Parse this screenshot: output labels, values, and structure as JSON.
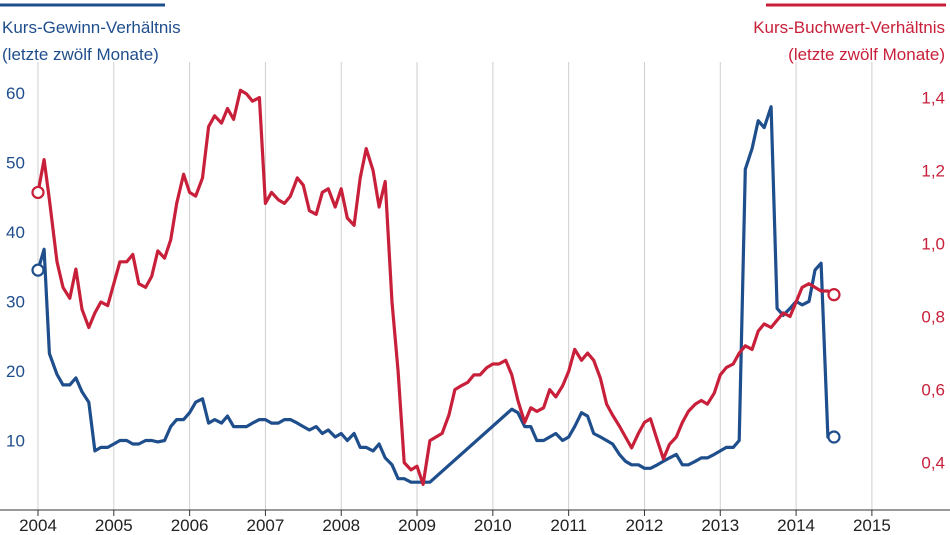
{
  "chart_data": {
    "type": "line",
    "left_axis": {
      "title_lines": [
        "Kurs-Gewinn-Verhältnis",
        "(letzte zwölf Monate)"
      ],
      "ticks": [
        "10",
        "20",
        "30",
        "40",
        "50",
        "60"
      ],
      "range": [
        0,
        63
      ],
      "color": "#1f4e8c"
    },
    "right_axis": {
      "title_lines": [
        "Kurs-Buchwert-Verhältnis",
        "(letzte zwölf Monate)"
      ],
      "ticks": [
        "0,4",
        "0,6",
        "0,8",
        "1,0",
        "1,2",
        "1,4"
      ],
      "range": [
        0.27,
        1.47
      ],
      "color": "#c8203a"
    },
    "x_ticks": [
      "2004",
      "2005",
      "2006",
      "2007",
      "2008",
      "2009",
      "2010",
      "2011",
      "2012",
      "2013",
      "2014",
      "2015"
    ],
    "x_range": [
      2004,
      2015.45
    ],
    "grid": "vertical",
    "series": [
      {
        "axis": "left",
        "color": "#1f4e8c",
        "marker_start": true,
        "marker_end": true,
        "x": [
          2004.0,
          2004.08,
          2004.15,
          2004.25,
          2004.33,
          2004.42,
          2004.5,
          2004.58,
          2004.67,
          2004.75,
          2004.83,
          2004.92,
          2005.0,
          2005.08,
          2005.17,
          2005.25,
          2005.33,
          2005.42,
          2005.5,
          2005.58,
          2005.67,
          2005.75,
          2005.83,
          2005.92,
          2006.0,
          2006.08,
          2006.17,
          2006.25,
          2006.33,
          2006.42,
          2006.5,
          2006.58,
          2006.67,
          2006.75,
          2006.83,
          2006.92,
          2007.0,
          2007.08,
          2007.17,
          2007.25,
          2007.33,
          2007.42,
          2007.5,
          2007.58,
          2007.67,
          2007.75,
          2007.83,
          2007.92,
          2008.0,
          2008.08,
          2008.17,
          2008.25,
          2008.33,
          2008.42,
          2008.5,
          2008.58,
          2008.67,
          2008.75,
          2008.83,
          2008.92,
          2009.0,
          2009.08,
          2009.17,
          2010.25,
          2010.33,
          2010.42,
          2010.5,
          2010.58,
          2010.67,
          2010.75,
          2010.83,
          2010.92,
          2011.0,
          2011.08,
          2011.17,
          2011.25,
          2011.33,
          2011.42,
          2011.5,
          2011.58,
          2011.67,
          2011.75,
          2011.83,
          2011.92,
          2012.0,
          2012.08,
          2012.17,
          2012.25,
          2012.33,
          2012.42,
          2012.5,
          2012.58,
          2012.67,
          2012.75,
          2012.83,
          2012.92,
          2013.0,
          2013.08,
          2013.17,
          2013.25,
          2013.33,
          2013.42,
          2013.5,
          2013.58,
          2013.67,
          2013.75,
          2013.83,
          2013.92,
          2014.0,
          2014.08,
          2014.17,
          2014.25,
          2014.33,
          2014.42,
          2014.5
        ],
        "values": [
          34.5,
          37.5,
          22.5,
          19.5,
          18,
          18,
          19,
          17,
          15.5,
          8.5,
          9,
          9,
          9.5,
          10,
          10,
          9.5,
          9.5,
          10,
          10,
          9.8,
          10,
          12,
          13,
          13,
          14,
          15.5,
          16,
          12.5,
          13,
          12.5,
          13.5,
          12,
          12,
          12,
          12.5,
          13,
          13,
          12.5,
          12.5,
          13,
          13,
          12.5,
          12,
          11.5,
          12,
          11,
          11.5,
          10.5,
          11,
          10,
          11,
          9,
          9,
          8.5,
          9.5,
          7.5,
          6.5,
          4.5,
          4.5,
          4,
          4,
          4,
          4,
          14.5,
          14,
          12,
          12,
          10,
          10,
          10.5,
          11,
          10,
          10.5,
          12,
          14,
          13.5,
          11,
          10.5,
          10,
          9.5,
          8,
          7,
          6.5,
          6.5,
          6,
          6,
          6.5,
          7,
          7.5,
          8,
          6.5,
          6.5,
          7,
          7.5,
          7.5,
          8,
          8.5,
          9,
          9,
          10,
          49,
          52,
          56,
          55,
          58,
          29,
          28,
          29,
          30,
          29.5,
          30,
          34.5,
          35.5,
          10.5,
          10.5
        ]
      },
      {
        "axis": "right",
        "color": "#c8203a",
        "marker_start": true,
        "marker_end": true,
        "x": [
          2004.0,
          2004.08,
          2004.15,
          2004.25,
          2004.33,
          2004.42,
          2004.5,
          2004.58,
          2004.67,
          2004.75,
          2004.83,
          2004.92,
          2005.0,
          2005.08,
          2005.17,
          2005.25,
          2005.33,
          2005.42,
          2005.5,
          2005.58,
          2005.67,
          2005.75,
          2005.83,
          2005.92,
          2006.0,
          2006.08,
          2006.17,
          2006.25,
          2006.33,
          2006.42,
          2006.5,
          2006.58,
          2006.67,
          2006.75,
          2006.83,
          2006.92,
          2007.0,
          2007.08,
          2007.17,
          2007.25,
          2007.33,
          2007.42,
          2007.5,
          2007.58,
          2007.67,
          2007.75,
          2007.83,
          2007.92,
          2008.0,
          2008.08,
          2008.17,
          2008.25,
          2008.33,
          2008.42,
          2008.5,
          2008.58,
          2008.67,
          2008.75,
          2008.83,
          2008.92,
          2009.0,
          2009.08,
          2009.17,
          2009.25,
          2009.33,
          2009.42,
          2009.5,
          2009.58,
          2009.67,
          2009.75,
          2009.83,
          2009.92,
          2010.0,
          2010.08,
          2010.17,
          2010.25,
          2010.33,
          2010.42,
          2010.5,
          2010.58,
          2010.67,
          2010.75,
          2010.83,
          2010.92,
          2011.0,
          2011.08,
          2011.17,
          2011.25,
          2011.33,
          2011.42,
          2011.5,
          2011.58,
          2011.67,
          2011.75,
          2011.83,
          2011.92,
          2012.0,
          2012.08,
          2012.17,
          2012.25,
          2012.33,
          2012.42,
          2012.5,
          2012.58,
          2012.67,
          2012.75,
          2012.83,
          2012.92,
          2013.0,
          2013.08,
          2013.17,
          2013.25,
          2013.33,
          2013.42,
          2013.5,
          2013.58,
          2013.67,
          2013.75,
          2013.83,
          2013.92,
          2014.0,
          2014.08,
          2014.17,
          2014.25,
          2014.33,
          2014.42,
          2014.5
        ],
        "values": [
          1.14,
          1.23,
          1.12,
          0.95,
          0.88,
          0.85,
          0.93,
          0.82,
          0.77,
          0.81,
          0.84,
          0.83,
          0.89,
          0.95,
          0.95,
          0.97,
          0.89,
          0.88,
          0.91,
          0.98,
          0.96,
          1.01,
          1.11,
          1.19,
          1.14,
          1.13,
          1.18,
          1.32,
          1.35,
          1.33,
          1.37,
          1.34,
          1.42,
          1.41,
          1.39,
          1.4,
          1.11,
          1.14,
          1.12,
          1.11,
          1.13,
          1.18,
          1.16,
          1.09,
          1.08,
          1.14,
          1.15,
          1.1,
          1.15,
          1.07,
          1.05,
          1.18,
          1.26,
          1.2,
          1.1,
          1.17,
          0.84,
          0.65,
          0.4,
          0.38,
          0.39,
          0.34,
          0.46,
          0.47,
          0.48,
          0.53,
          0.6,
          0.61,
          0.62,
          0.64,
          0.64,
          0.66,
          0.67,
          0.67,
          0.68,
          0.64,
          0.57,
          0.51,
          0.55,
          0.54,
          0.55,
          0.6,
          0.58,
          0.61,
          0.65,
          0.71,
          0.68,
          0.7,
          0.68,
          0.63,
          0.56,
          0.53,
          0.5,
          0.47,
          0.44,
          0.48,
          0.51,
          0.52,
          0.46,
          0.41,
          0.45,
          0.47,
          0.51,
          0.54,
          0.56,
          0.57,
          0.56,
          0.59,
          0.64,
          0.66,
          0.67,
          0.7,
          0.72,
          0.71,
          0.76,
          0.78,
          0.77,
          0.79,
          0.81,
          0.8,
          0.84,
          0.88,
          0.89,
          0.88,
          0.87,
          0.87,
          0.86
        ]
      }
    ]
  }
}
